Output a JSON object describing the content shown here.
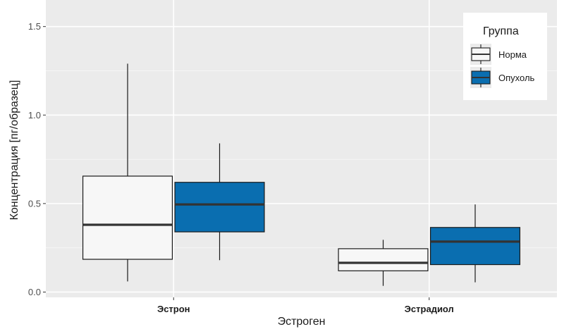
{
  "chart_data": {
    "type": "box",
    "xlabel": "Эстроген",
    "ylabel": "Концентрация [пг/образец]",
    "ylim": [
      -0.03,
      1.65
    ],
    "yticks": [
      0.0,
      0.5,
      1.0,
      1.5
    ],
    "ytick_labels": [
      "0.0",
      "0.5",
      "1.0",
      "1.5"
    ],
    "categories": [
      "Эстрон",
      "Эстрадиол"
    ],
    "grid": true,
    "legend": {
      "title": "Группа",
      "position": "top-right"
    },
    "series": [
      {
        "name": "Норма",
        "color": "#f7f7f7",
        "boxes": [
          {
            "whisker_low": 0.06,
            "q1": 0.185,
            "median": 0.38,
            "q3": 0.655,
            "whisker_high": 1.29
          },
          {
            "whisker_low": 0.035,
            "q1": 0.12,
            "median": 0.165,
            "q3": 0.245,
            "whisker_high": 0.295
          }
        ]
      },
      {
        "name": "Опухоль",
        "color": "#0a6eb0",
        "boxes": [
          {
            "whisker_low": 0.18,
            "q1": 0.34,
            "median": 0.495,
            "q3": 0.62,
            "whisker_high": 0.84
          },
          {
            "whisker_low": 0.055,
            "q1": 0.155,
            "median": 0.285,
            "q3": 0.365,
            "whisker_high": 0.495
          }
        ]
      }
    ]
  }
}
